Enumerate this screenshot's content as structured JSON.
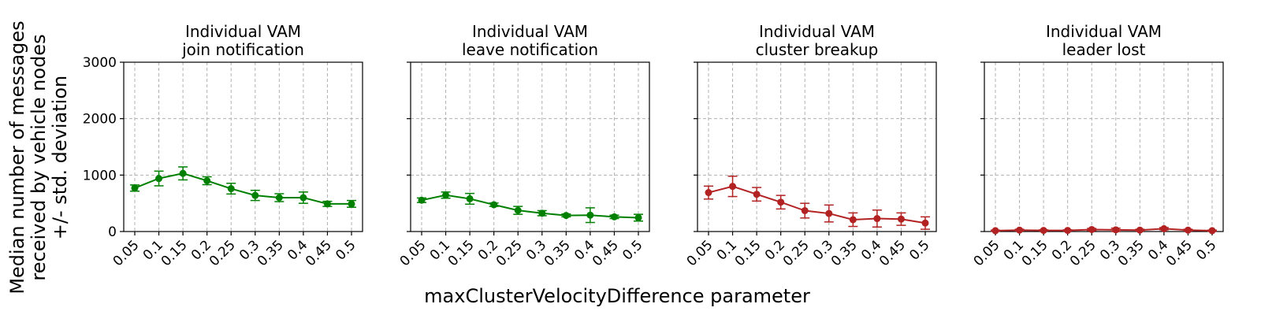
{
  "figure": {
    "ylabel_lines": [
      "Median number of messages",
      "received by vehicle nodes",
      "+/- std. deviation"
    ],
    "xlabel": "maxClusterVelocityDifference parameter"
  },
  "chart_data": [
    {
      "type": "line",
      "title_lines": [
        "Individual VAM",
        "join notification"
      ],
      "color": "#008000",
      "categories": [
        "0.05",
        "0.1",
        "0.15",
        "0.2",
        "0.25",
        "0.3",
        "0.35",
        "0.4",
        "0.45",
        "0.5"
      ],
      "values": [
        770,
        940,
        1030,
        900,
        760,
        640,
        600,
        600,
        490,
        490
      ],
      "errors": [
        55,
        130,
        115,
        70,
        95,
        90,
        70,
        100,
        45,
        60
      ],
      "ylim": [
        0,
        3000
      ],
      "yticks": [
        0,
        1000,
        2000,
        3000
      ],
      "grid": true
    },
    {
      "type": "line",
      "title_lines": [
        "Individual VAM",
        "leave notification"
      ],
      "color": "#008000",
      "categories": [
        "0.05",
        "0.1",
        "0.15",
        "0.2",
        "0.25",
        "0.3",
        "0.35",
        "0.4",
        "0.45",
        "0.5"
      ],
      "values": [
        555,
        645,
        580,
        475,
        375,
        325,
        285,
        290,
        260,
        245
      ],
      "errors": [
        40,
        55,
        95,
        30,
        70,
        45,
        25,
        130,
        30,
        60
      ],
      "ylim": [
        0,
        3000
      ],
      "yticks": [
        0,
        1000,
        2000,
        3000
      ],
      "grid": true
    },
    {
      "type": "line",
      "title_lines": [
        "Individual VAM",
        "cluster breakup"
      ],
      "color": "#b22222",
      "categories": [
        "0.05",
        "0.1",
        "0.15",
        "0.2",
        "0.25",
        "0.3",
        "0.35",
        "0.4",
        "0.45",
        "0.5"
      ],
      "values": [
        690,
        800,
        660,
        520,
        370,
        320,
        210,
        230,
        220,
        150
      ],
      "errors": [
        115,
        180,
        120,
        120,
        130,
        150,
        120,
        150,
        110,
        110
      ],
      "ylim": [
        0,
        3000
      ],
      "yticks": [
        0,
        1000,
        2000,
        3000
      ],
      "grid": true
    },
    {
      "type": "line",
      "title_lines": [
        "Individual VAM",
        "leader lost"
      ],
      "color": "#b22222",
      "categories": [
        "0.05",
        "0.1",
        "0.15",
        "0.2",
        "0.25",
        "0.3",
        "0.35",
        "0.4",
        "0.45",
        "0.5"
      ],
      "values": [
        15,
        25,
        20,
        20,
        35,
        30,
        25,
        50,
        25,
        15
      ],
      "errors": [
        10,
        15,
        10,
        10,
        20,
        30,
        15,
        20,
        15,
        10
      ],
      "ylim": [
        0,
        3000
      ],
      "yticks": [
        0,
        1000,
        2000,
        3000
      ],
      "grid": true
    }
  ]
}
